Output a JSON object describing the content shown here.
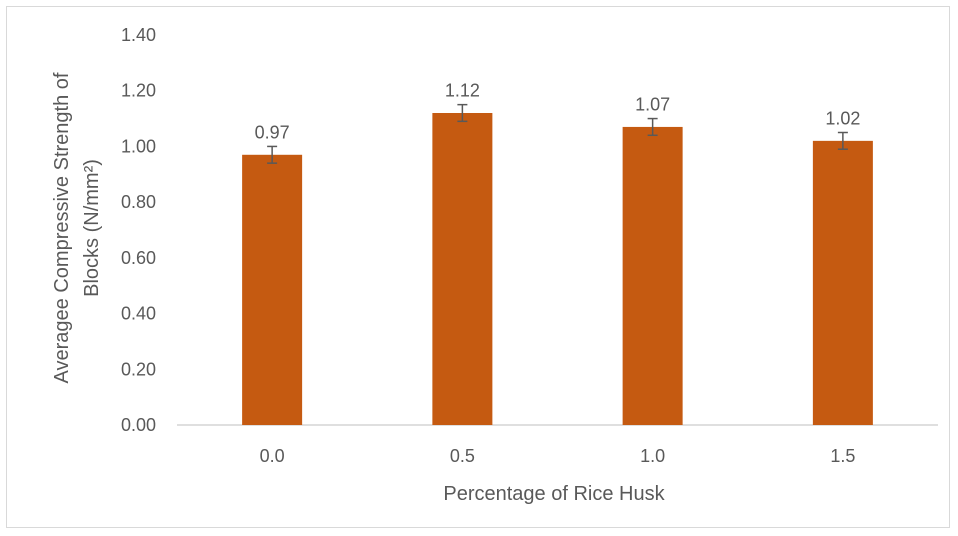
{
  "chart_data": {
    "type": "bar",
    "categories": [
      "0.0",
      "0.5",
      "1.0",
      "1.5"
    ],
    "values": [
      0.97,
      1.12,
      1.07,
      1.02
    ],
    "data_labels": [
      "0.97",
      "1.12",
      "1.07",
      "1.02"
    ],
    "error_bars": [
      0.03,
      0.03,
      0.03,
      0.03
    ],
    "xlabel": "Percentage of Rice Husk",
    "ylabel_line1": "Averagee Compressive Strength of",
    "ylabel_line2": "Blocks (N/mm²)",
    "ylim": [
      0,
      1.4
    ],
    "yticks": [
      "0.00",
      "0.20",
      "0.40",
      "0.60",
      "0.80",
      "1.00",
      "1.20",
      "1.40"
    ],
    "grid": false,
    "bar_color": "#C55A11",
    "error_bar_color": "#595959",
    "axis_color": "#BFBFBF",
    "text_color": "#595959"
  }
}
